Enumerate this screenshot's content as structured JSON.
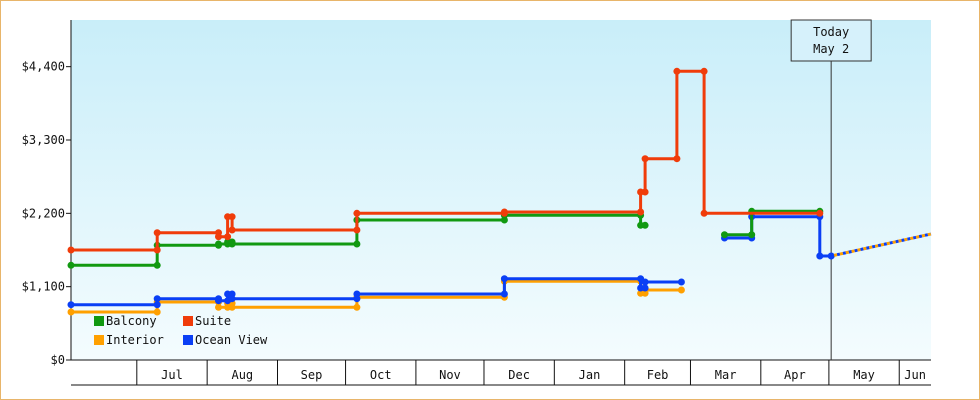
{
  "chart_data": {
    "type": "line",
    "title": "",
    "xlabel": "",
    "ylabel": "",
    "y_tick_labels": [
      "$0",
      "$1,100",
      "$2,200",
      "$3,300",
      "$4,400"
    ],
    "y_ticks": [
      0,
      1100,
      2200,
      3300,
      4400
    ],
    "ylim": [
      0,
      5100
    ],
    "x_tick_labels": [
      "Jul",
      "Aug",
      "Sep",
      "Oct",
      "Nov",
      "Dec",
      "Jan",
      "Feb",
      "Mar",
      "Apr",
      "May",
      "Jun"
    ],
    "x_tick_dates": [
      "2023-07-01",
      "2023-08-01",
      "2023-09-01",
      "2023-10-01",
      "2023-11-01",
      "2023-12-01",
      "2024-01-01",
      "2024-02-01",
      "2024-03-01",
      "2024-04-01",
      "2024-05-01",
      "2024-06-01"
    ],
    "xlim": [
      "2023-06-02",
      "2024-06-15"
    ],
    "grid": false,
    "legend_position": "bottom-left",
    "today_marker": {
      "line1": "Today",
      "line2": "May 2",
      "date": "2024-05-02"
    },
    "series": [
      {
        "name": "Balcony",
        "color": "#119911",
        "points": [
          [
            "2023-06-02",
            1420
          ],
          [
            "2023-07-10",
            1420
          ],
          [
            "2023-07-10",
            1720
          ],
          [
            "2023-08-06",
            1720
          ],
          [
            "2023-08-06",
            1740
          ],
          [
            "2023-08-10",
            1740
          ],
          [
            "2023-08-10",
            1770
          ],
          [
            "2023-08-12",
            1770
          ],
          [
            "2023-08-12",
            1740
          ],
          [
            "2023-10-06",
            1740
          ],
          [
            "2023-10-06",
            2100
          ],
          [
            "2023-12-10",
            2100
          ],
          [
            "2023-12-10",
            2170
          ],
          [
            "2024-02-08",
            2170
          ],
          [
            "2024-02-08",
            2020
          ],
          [
            "2024-02-10",
            2020
          ]
        ],
        "segments_after": [
          [
            [
              "2024-03-16",
              1880
            ],
            [
              "2024-03-28",
              1880
            ],
            [
              "2024-03-28",
              2230
            ],
            [
              "2024-04-27",
              2230
            ]
          ]
        ]
      },
      {
        "name": "Suite",
        "color": "#f03c0a",
        "points": [
          [
            "2023-06-02",
            1650
          ],
          [
            "2023-07-10",
            1650
          ],
          [
            "2023-07-10",
            1910
          ],
          [
            "2023-08-06",
            1910
          ],
          [
            "2023-08-06",
            1850
          ],
          [
            "2023-08-10",
            1850
          ],
          [
            "2023-08-10",
            2150
          ],
          [
            "2023-08-12",
            2150
          ],
          [
            "2023-08-12",
            1950
          ],
          [
            "2023-10-06",
            1950
          ],
          [
            "2023-10-06",
            2200
          ],
          [
            "2023-12-10",
            2200
          ],
          [
            "2023-12-10",
            2220
          ],
          [
            "2024-02-08",
            2220
          ],
          [
            "2024-02-08",
            2520
          ],
          [
            "2024-02-10",
            2520
          ],
          [
            "2024-02-10",
            3020
          ],
          [
            "2024-02-24",
            3020
          ],
          [
            "2024-02-24",
            4330
          ],
          [
            "2024-03-07",
            4330
          ],
          [
            "2024-03-07",
            2200
          ],
          [
            "2024-04-27",
            2200
          ]
        ]
      },
      {
        "name": "Interior",
        "color": "#ffa000",
        "points": [
          [
            "2023-06-02",
            720
          ],
          [
            "2023-07-10",
            720
          ],
          [
            "2023-07-10",
            870
          ],
          [
            "2023-08-06",
            870
          ],
          [
            "2023-08-06",
            790
          ],
          [
            "2023-08-10",
            790
          ],
          [
            "2023-08-10",
            850
          ],
          [
            "2023-08-12",
            850
          ],
          [
            "2023-08-12",
            790
          ],
          [
            "2023-10-06",
            790
          ],
          [
            "2023-10-06",
            940
          ],
          [
            "2023-12-10",
            940
          ],
          [
            "2023-12-10",
            1180
          ],
          [
            "2024-02-08",
            1180
          ],
          [
            "2024-02-08",
            1000
          ],
          [
            "2024-02-10",
            1000
          ],
          [
            "2024-02-10",
            1050
          ],
          [
            "2024-02-26",
            1050
          ]
        ]
      },
      {
        "name": "Ocean View",
        "color": "#0a3ff5",
        "points": [
          [
            "2023-06-02",
            830
          ],
          [
            "2023-07-10",
            830
          ],
          [
            "2023-07-10",
            920
          ],
          [
            "2023-08-06",
            920
          ],
          [
            "2023-08-06",
            890
          ],
          [
            "2023-08-10",
            890
          ],
          [
            "2023-08-10",
            990
          ],
          [
            "2023-08-12",
            990
          ],
          [
            "2023-08-12",
            920
          ],
          [
            "2023-10-06",
            920
          ],
          [
            "2023-10-06",
            990
          ],
          [
            "2023-12-10",
            990
          ],
          [
            "2023-12-10",
            1220
          ],
          [
            "2024-02-08",
            1220
          ],
          [
            "2024-02-08",
            1080
          ],
          [
            "2024-02-10",
            1080
          ],
          [
            "2024-02-10",
            1170
          ],
          [
            "2024-02-26",
            1170
          ]
        ],
        "segments_after": [
          [
            [
              "2024-03-16",
              1830
            ],
            [
              "2024-03-28",
              1830
            ],
            [
              "2024-03-28",
              2150
            ],
            [
              "2024-04-27",
              2150
            ],
            [
              "2024-04-27",
              1560
            ],
            [
              "2024-05-02",
              1560
            ]
          ]
        ]
      }
    ],
    "projection": {
      "from": [
        "2024-05-02",
        1560
      ],
      "to": [
        "2024-06-15",
        1890
      ],
      "colors": [
        "#0a3ff5",
        "#ffa000"
      ]
    }
  }
}
